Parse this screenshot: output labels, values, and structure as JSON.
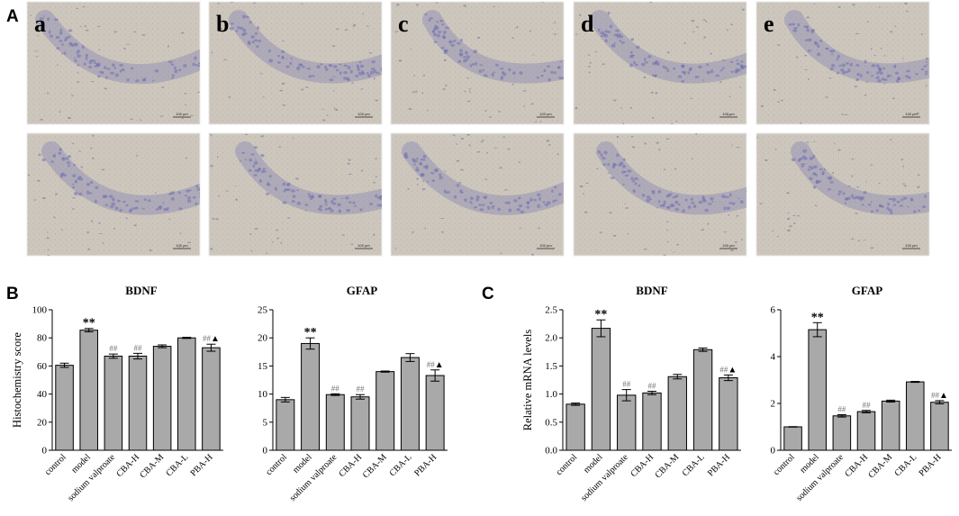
{
  "panel_labels": [
    "A",
    "B",
    "C"
  ],
  "micrographs": {
    "columns": [
      "a",
      "b",
      "c",
      "d",
      "e"
    ],
    "scale_bar": "100 μm",
    "colors": {
      "background": "#cdc6bc",
      "stain": "#6f6fb0",
      "frame": "#e8e8e8"
    }
  },
  "bar_color": "#a9a9a9",
  "chart_data": [
    {
      "type": "bar",
      "panel": "B",
      "title": "BDNF",
      "ylabel": "Histochemistry score",
      "categories": [
        "control",
        "model",
        "sodium valproate",
        "CBA-H",
        "CBA-M",
        "CBA-L",
        "PBA-H"
      ],
      "values": [
        60.5,
        85.5,
        67,
        67,
        74,
        80,
        73
      ],
      "errors": [
        1.5,
        1.2,
        1.5,
        2,
        1,
        0.4,
        2.5
      ],
      "annotations": [
        "",
        "**",
        "##",
        "##",
        "",
        "",
        "##▲"
      ],
      "ylim": [
        0,
        100
      ],
      "yticks": [
        0,
        20,
        40,
        60,
        80,
        100
      ]
    },
    {
      "type": "bar",
      "panel": "B",
      "title": "GFAP",
      "ylabel": "",
      "categories": [
        "control",
        "model",
        "sodium valproate",
        "CBA-H",
        "CBA-M",
        "CBA-L",
        "PBA-H"
      ],
      "values": [
        9,
        19,
        9.9,
        9.5,
        14,
        16.5,
        13.3
      ],
      "errors": [
        0.4,
        1.0,
        0.15,
        0.4,
        0.1,
        0.7,
        1.0
      ],
      "annotations": [
        "",
        "**",
        "##",
        "##",
        "",
        "",
        "##▲"
      ],
      "ylim": [
        0,
        25
      ],
      "yticks": [
        0,
        5,
        10,
        15,
        20,
        25
      ]
    },
    {
      "type": "bar",
      "panel": "C",
      "title": "BDNF",
      "ylabel": "Relative mRNA levels",
      "categories": [
        "control",
        "model",
        "sodium valproate",
        "CBA-H",
        "CBA-M",
        "CBA-L",
        "PBA-H"
      ],
      "values": [
        0.82,
        2.17,
        0.98,
        1.02,
        1.31,
        1.79,
        1.29
      ],
      "errors": [
        0.02,
        0.15,
        0.1,
        0.03,
        0.04,
        0.03,
        0.05
      ],
      "annotations": [
        "",
        "**",
        "##",
        "##",
        "",
        "",
        "##▲"
      ],
      "ylim": [
        0,
        2.5
      ],
      "yticks": [
        "0.0",
        "0.5",
        "1.0",
        "1.5",
        "2.0",
        "2.5"
      ]
    },
    {
      "type": "bar",
      "panel": "C",
      "title": "GFAP",
      "ylabel": "",
      "categories": [
        "control",
        "model",
        "sodium valproate",
        "CBA-H",
        "CBA-M",
        "CBA-L",
        "PBA-H"
      ],
      "values": [
        1.0,
        5.15,
        1.47,
        1.65,
        2.1,
        2.92,
        2.05
      ],
      "errors": [
        0.01,
        0.3,
        0.05,
        0.05,
        0.04,
        0.02,
        0.07
      ],
      "annotations": [
        "",
        "**",
        "##",
        "##",
        "",
        "",
        "##▲"
      ],
      "ylim": [
        0,
        6
      ],
      "yticks": [
        0,
        2,
        4,
        6
      ]
    }
  ]
}
